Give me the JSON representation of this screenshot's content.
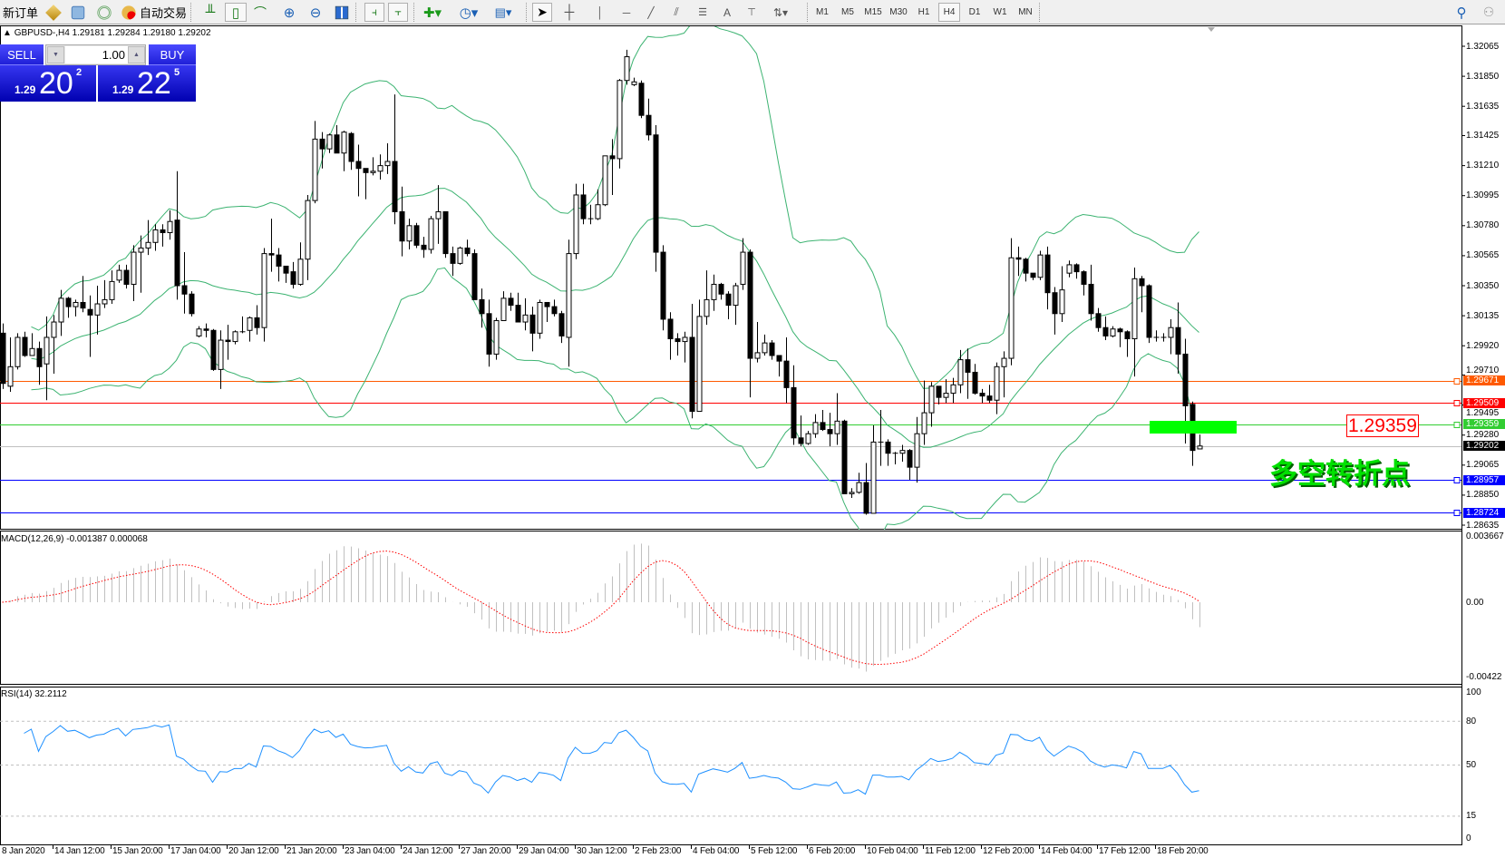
{
  "toolbar": {
    "new_order": "新订单",
    "auto_trading": "自动交易",
    "icons": [
      "market-watch-icon",
      "navigator-icon",
      "signals-icon",
      "auto-trading-icon",
      "bar-chart-icon",
      "candlestick-icon",
      "line-chart-icon",
      "zoom-in-icon",
      "zoom-out-icon",
      "tile-windows-icon",
      "chart-shift-icon",
      "auto-scroll-icon",
      "indicators-icon",
      "periods-icon",
      "templates-icon",
      "cursor-icon",
      "crosshair-icon",
      "vertical-line-icon",
      "horizontal-line-icon",
      "trendline-icon",
      "channel-icon",
      "fibonacci-icon",
      "text-icon",
      "text-label-icon",
      "arrows-icon",
      "search-icon",
      "community-icon"
    ],
    "timeframes": [
      "M1",
      "M5",
      "M15",
      "M30",
      "H1",
      "H4",
      "D1",
      "W1",
      "MN"
    ],
    "active_timeframe": "H4"
  },
  "chart_header": "GBPUSD-,H4  1.29181 1.29284 1.29180 1.29202",
  "trade_panel": {
    "sell_label": "SELL",
    "buy_label": "BUY",
    "lot": "1.00",
    "sell_price": {
      "small": "1.29",
      "big": "20",
      "sup": "2"
    },
    "buy_price": {
      "small": "1.29",
      "big": "22",
      "sup": "5"
    }
  },
  "annotation": {
    "price_label": "1.29359",
    "text": "多空转折点",
    "box_color": "#00ff00"
  },
  "chart_data": {
    "type": "candlestick",
    "symbol": "GBPUSD-",
    "timeframe": "H4",
    "price_ticks": [
      "1.32065",
      "1.31850",
      "1.31635",
      "1.31425",
      "1.31210",
      "1.30995",
      "1.30780",
      "1.30565",
      "1.30350",
      "1.30135",
      "1.29920",
      "1.29710",
      "1.29495",
      "1.29280",
      "1.29065",
      "1.28850",
      "1.28635"
    ],
    "time_labels": [
      "8 Jan 2020",
      "14 Jan 12:00",
      "15 Jan 20:00",
      "17 Jan 04:00",
      "20 Jan 12:00",
      "21 Jan 20:00",
      "23 Jan 04:00",
      "24 Jan 12:00",
      "27 Jan 20:00",
      "29 Jan 04:00",
      "30 Jan 12:00",
      "2 Feb 23:00",
      "4 Feb 04:00",
      "5 Feb 12:00",
      "6 Feb 20:00",
      "10 Feb 04:00",
      "11 Feb 12:00",
      "12 Feb 20:00",
      "14 Feb 04:00",
      "17 Feb 12:00",
      "18 Feb 20:00"
    ],
    "current_price": {
      "value": "1.29202",
      "color": "#000000"
    },
    "levels": [
      {
        "value": "1.29671",
        "color": "#ff5a00"
      },
      {
        "value": "1.29509",
        "color": "#ff0000"
      },
      {
        "value": "1.29359",
        "color": "#32cd32"
      },
      {
        "value": "1.28957",
        "color": "#0000ff"
      },
      {
        "value": "1.28724",
        "color": "#0000ff"
      }
    ],
    "bollinger": {
      "period": 20,
      "deviation": 2,
      "color": "#3cb371"
    },
    "macd": {
      "label": "MACD(12,26,9) -0.001387 0.000068",
      "ticks": [
        "0.003667",
        "0.00",
        "-0.00422"
      ],
      "range": [
        -0.00422,
        0.003667
      ],
      "hist_color": "#c0c0c0",
      "signal_color": "#ff0000"
    },
    "rsi": {
      "label": "RSI(14) 32.2112",
      "ticks": [
        "100",
        "80",
        "50",
        "15",
        "0"
      ],
      "levels": [
        80,
        50,
        15
      ],
      "color": "#1e90ff"
    },
    "ohlc": [
      [
        1.3001,
        1.3008,
        1.2961,
        1.2965
      ],
      [
        1.2963,
        1.2998,
        1.2959,
        1.2977
      ],
      [
        1.2977,
        1.3001,
        1.2975,
        1.2998
      ],
      [
        1.2998,
        1.3002,
        1.2984,
        1.2985
      ],
      [
        1.2985,
        1.3001,
        1.2985,
        1.299
      ],
      [
        1.299,
        1.2995,
        1.2964,
        1.2977
      ],
      [
        1.2979,
        1.3013,
        1.2953,
        1.2998
      ],
      [
        1.2998,
        1.3014,
        1.2972,
        1.3009
      ],
      [
        1.3009,
        1.3032,
        1.2999,
        1.3026
      ],
      [
        1.3026,
        1.3027,
        1.3012,
        1.302
      ],
      [
        1.302,
        1.3025,
        1.3013,
        1.3023
      ],
      [
        1.3023,
        1.3042,
        1.3016,
        1.3019
      ],
      [
        1.3018,
        1.3028,
        1.2984,
        1.3014
      ],
      [
        1.3014,
        1.3035,
        1.3,
        1.3022
      ],
      [
        1.3022,
        1.3039,
        1.3019,
        1.3025
      ],
      [
        1.3025,
        1.3046,
        1.3022,
        1.3038
      ],
      [
        1.3039,
        1.305,
        1.3037,
        1.3046
      ],
      [
        1.3046,
        1.305,
        1.3033,
        1.3036
      ],
      [
        1.3036,
        1.3064,
        1.3024,
        1.3059
      ],
      [
        1.3059,
        1.3071,
        1.303,
        1.3062
      ],
      [
        1.3062,
        1.3082,
        1.3057,
        1.3066
      ],
      [
        1.3066,
        1.3079,
        1.306,
        1.3075
      ],
      [
        1.3075,
        1.3079,
        1.3063,
        1.3073
      ],
      [
        1.3073,
        1.3089,
        1.3068,
        1.3081
      ],
      [
        1.3082,
        1.3117,
        1.3025,
        1.3035
      ],
      [
        1.3035,
        1.3059,
        1.3015,
        1.3029
      ],
      [
        1.3029,
        1.3031,
        1.3013,
        1.3015
      ],
      [
        1.2999,
        1.3006,
        1.2998,
        1.3004
      ],
      [
        1.3004,
        1.3008,
        1.2998,
        1.3003
      ],
      [
        1.3003,
        1.3004,
        1.2974,
        1.2975
      ],
      [
        1.2975,
        1.3003,
        1.2961,
        1.2996
      ],
      [
        1.2996,
        1.3007,
        1.2982,
        1.2995
      ],
      [
        1.2995,
        1.3003,
        1.2993,
        1.3002
      ],
      [
        1.3002,
        1.3013,
        1.3001,
        1.3002
      ],
      [
        1.3003,
        1.3013,
        1.2995,
        1.3012
      ],
      [
        1.3012,
        1.3021,
        1.3,
        1.3005
      ],
      [
        1.3005,
        1.3062,
        1.2995,
        1.3058
      ],
      [
        1.3058,
        1.3083,
        1.3045,
        1.3057
      ],
      [
        1.3057,
        1.3062,
        1.3038,
        1.3049
      ],
      [
        1.3049,
        1.3049,
        1.3037,
        1.3044
      ],
      [
        1.3045,
        1.3052,
        1.3033,
        1.3036
      ],
      [
        1.3036,
        1.3066,
        1.3035,
        1.3054
      ],
      [
        1.3054,
        1.31,
        1.3039,
        1.3096
      ],
      [
        1.3096,
        1.3153,
        1.3094,
        1.314
      ],
      [
        1.314,
        1.3145,
        1.3119,
        1.3133
      ],
      [
        1.3133,
        1.3144,
        1.313,
        1.3143
      ],
      [
        1.3143,
        1.315,
        1.313,
        1.313
      ],
      [
        1.313,
        1.3146,
        1.3117,
        1.3145
      ],
      [
        1.3144,
        1.3145,
        1.3118,
        1.3124
      ],
      [
        1.3124,
        1.3136,
        1.3099,
        1.3119
      ],
      [
        1.3119,
        1.3119,
        1.3097,
        1.3116
      ],
      [
        1.3116,
        1.3127,
        1.3114,
        1.3117
      ],
      [
        1.3117,
        1.3129,
        1.3111,
        1.3121
      ],
      [
        1.3121,
        1.3137,
        1.3115,
        1.3124
      ],
      [
        1.3124,
        1.3172,
        1.3079,
        1.3088
      ],
      [
        1.3088,
        1.3106,
        1.3056,
        1.3067
      ],
      [
        1.3067,
        1.3083,
        1.3061,
        1.3078
      ],
      [
        1.3078,
        1.308,
        1.3062,
        1.3064
      ],
      [
        1.3064,
        1.307,
        1.3055,
        1.3061
      ],
      [
        1.3061,
        1.3085,
        1.3058,
        1.3083
      ],
      [
        1.3083,
        1.3107,
        1.3065,
        1.3088
      ],
      [
        1.3088,
        1.3088,
        1.3055,
        1.3058
      ],
      [
        1.3058,
        1.3063,
        1.3042,
        1.3051
      ],
      [
        1.3051,
        1.3063,
        1.305,
        1.3062
      ],
      [
        1.3062,
        1.3068,
        1.3056,
        1.3058
      ],
      [
        1.3058,
        1.3061,
        1.3025,
        1.3025
      ],
      [
        1.3025,
        1.3033,
        1.3005,
        1.3015
      ],
      [
        1.3015,
        1.3025,
        1.2977,
        1.2986
      ],
      [
        1.2986,
        1.3012,
        1.2982,
        1.301
      ],
      [
        1.301,
        1.3031,
        1.301,
        1.3026
      ],
      [
        1.3026,
        1.303,
        1.3017,
        1.3021
      ],
      [
        1.3021,
        1.303,
        1.3009,
        1.3009
      ],
      [
        1.3009,
        1.3026,
        1.3003,
        1.3014
      ],
      [
        1.3014,
        1.302,
        1.2988,
        1.3001
      ],
      [
        1.3001,
        1.3025,
        1.2997,
        1.3023
      ],
      [
        1.3023,
        1.3023,
        1.3009,
        1.302
      ],
      [
        1.302,
        1.3025,
        1.3013,
        1.3015
      ],
      [
        1.3015,
        1.3017,
        1.2994,
        1.2999
      ],
      [
        1.2998,
        1.3068,
        1.2977,
        1.3058
      ],
      [
        1.3058,
        1.3108,
        1.3054,
        1.31
      ],
      [
        1.31,
        1.3108,
        1.3079,
        1.3083
      ],
      [
        1.3083,
        1.3093,
        1.3079,
        1.3083
      ],
      [
        1.3083,
        1.3104,
        1.3082,
        1.3093
      ],
      [
        1.3093,
        1.3128,
        1.3092,
        1.3128
      ],
      [
        1.3128,
        1.314,
        1.31,
        1.3126
      ],
      [
        1.3126,
        1.3183,
        1.3119,
        1.3182
      ],
      [
        1.3182,
        1.3204,
        1.3179,
        1.3199
      ],
      [
        1.3179,
        1.3184,
        1.3178,
        1.3181
      ],
      [
        1.318,
        1.3182,
        1.3155,
        1.3157
      ],
      [
        1.3157,
        1.3169,
        1.3139,
        1.3143
      ],
      [
        1.3143,
        1.315,
        1.3045,
        1.3059
      ],
      [
        1.3059,
        1.3064,
        1.3003,
        1.3011
      ],
      [
        1.3011,
        1.3016,
        1.2982,
        1.2997
      ],
      [
        1.2997,
        1.3001,
        1.2985,
        1.2995
      ],
      [
        1.2995,
        1.3002,
        1.298,
        1.2998
      ],
      [
        1.2998,
        1.3022,
        1.294,
        1.2945
      ],
      [
        1.2945,
        1.3025,
        1.2945,
        1.3013
      ],
      [
        1.3013,
        1.3046,
        1.3007,
        1.3025
      ],
      [
        1.3025,
        1.3043,
        1.3017,
        1.3036
      ],
      [
        1.3036,
        1.3037,
        1.3025,
        1.3029
      ],
      [
        1.3029,
        1.3031,
        1.3011,
        1.3021
      ],
      [
        1.3021,
        1.3037,
        1.3007,
        1.3035
      ],
      [
        1.3036,
        1.3069,
        1.3032,
        1.3059
      ],
      [
        1.3059,
        1.3061,
        1.2955,
        1.2983
      ],
      [
        1.2983,
        1.3009,
        1.298,
        1.2987
      ],
      [
        1.2987,
        1.3,
        1.2985,
        1.2994
      ],
      [
        1.2994,
        1.2996,
        1.2982,
        1.2985
      ],
      [
        1.2985,
        1.2985,
        1.297,
        1.2981
      ],
      [
        1.2981,
        1.2998,
        1.2951,
        1.2962
      ],
      [
        1.2962,
        1.2978,
        1.2921,
        1.2926
      ],
      [
        1.2926,
        1.2942,
        1.292,
        1.2922
      ],
      [
        1.2922,
        1.2931,
        1.2921,
        1.2929
      ],
      [
        1.2929,
        1.2943,
        1.2926,
        1.2937
      ],
      [
        1.2937,
        1.2946,
        1.2931,
        1.2932
      ],
      [
        1.2932,
        1.2944,
        1.292,
        1.2929
      ],
      [
        1.2929,
        1.2958,
        1.2921,
        1.2938
      ],
      [
        1.2938,
        1.2939,
        1.2886,
        1.2886
      ],
      [
        1.2886,
        1.289,
        1.2883,
        1.2887
      ],
      [
        1.2887,
        1.2901,
        1.2886,
        1.2894
      ],
      [
        1.2894,
        1.2908,
        1.2871,
        1.2872
      ],
      [
        1.2872,
        1.2935,
        1.2872,
        1.2923
      ],
      [
        1.2923,
        1.2946,
        1.2906,
        1.2923
      ],
      [
        1.2923,
        1.2925,
        1.2906,
        1.2915
      ],
      [
        1.2915,
        1.2916,
        1.2907,
        1.2915
      ],
      [
        1.2915,
        1.2921,
        1.2909,
        1.2917
      ],
      [
        1.2917,
        1.2918,
        1.2896,
        1.2905
      ],
      [
        1.2905,
        1.2941,
        1.2894,
        1.2929
      ],
      [
        1.2929,
        1.2967,
        1.2921,
        1.2944
      ],
      [
        1.2944,
        1.2966,
        1.2934,
        1.2963
      ],
      [
        1.2963,
        1.2963,
        1.295,
        1.2955
      ],
      [
        1.2955,
        1.2968,
        1.2951,
        1.2958
      ],
      [
        1.2958,
        1.2969,
        1.2951,
        1.2964
      ],
      [
        1.2964,
        1.2989,
        1.2958,
        1.2982
      ],
      [
        1.2982,
        1.299,
        1.2954,
        1.2973
      ],
      [
        1.2973,
        1.2979,
        1.2957,
        1.2958
      ],
      [
        1.2958,
        1.2961,
        1.2951,
        1.2956
      ],
      [
        1.2956,
        1.2964,
        1.2951,
        1.2953
      ],
      [
        1.2953,
        1.298,
        1.2943,
        1.2977
      ],
      [
        1.2977,
        1.2988,
        1.2955,
        1.2983
      ],
      [
        1.2983,
        1.3069,
        1.2978,
        1.3055
      ],
      [
        1.3055,
        1.3063,
        1.3042,
        1.3054
      ],
      [
        1.3054,
        1.3055,
        1.3038,
        1.3044
      ],
      [
        1.3044,
        1.3044,
        1.3039,
        1.3041
      ],
      [
        1.3041,
        1.306,
        1.3039,
        1.3057
      ],
      [
        1.3057,
        1.3063,
        1.3018,
        1.303
      ],
      [
        1.303,
        1.3034,
        1.3,
        1.3015
      ],
      [
        1.3015,
        1.3049,
        1.3009,
        1.3032
      ],
      [
        1.3044,
        1.3053,
        1.3041,
        1.305
      ],
      [
        1.305,
        1.3051,
        1.304,
        1.3045
      ],
      [
        1.3045,
        1.3046,
        1.3028,
        1.3036
      ],
      [
        1.3036,
        1.305,
        1.301,
        1.3015
      ],
      [
        1.3015,
        1.3019,
        1.3002,
        1.3005
      ],
      [
        1.3005,
        1.3013,
        1.2996,
        1.2999
      ],
      [
        1.2999,
        1.3006,
        1.2998,
        1.3004
      ],
      [
        1.3004,
        1.3005,
        1.2991,
        1.3002
      ],
      [
        1.3002,
        1.3003,
        1.2984,
        1.2997
      ],
      [
        1.2997,
        1.3048,
        1.297,
        1.304
      ],
      [
        1.304,
        1.3042,
        1.3016,
        1.3035
      ],
      [
        1.3035,
        1.3036,
        1.2994,
        1.2998
      ],
      [
        1.2998,
        1.3003,
        1.2995,
        1.2998
      ],
      [
        1.2998,
        1.3001,
        1.2995,
        1.2998
      ],
      [
        1.2998,
        1.3011,
        1.2986,
        1.3005
      ],
      [
        1.3005,
        1.3023,
        1.2972,
        1.2986
      ],
      [
        1.2986,
        1.2997,
        1.2922,
        1.2949
      ],
      [
        1.295,
        1.2952,
        1.2906,
        1.2917
      ],
      [
        1.29181,
        1.29284,
        1.2918,
        1.29202
      ]
    ]
  }
}
